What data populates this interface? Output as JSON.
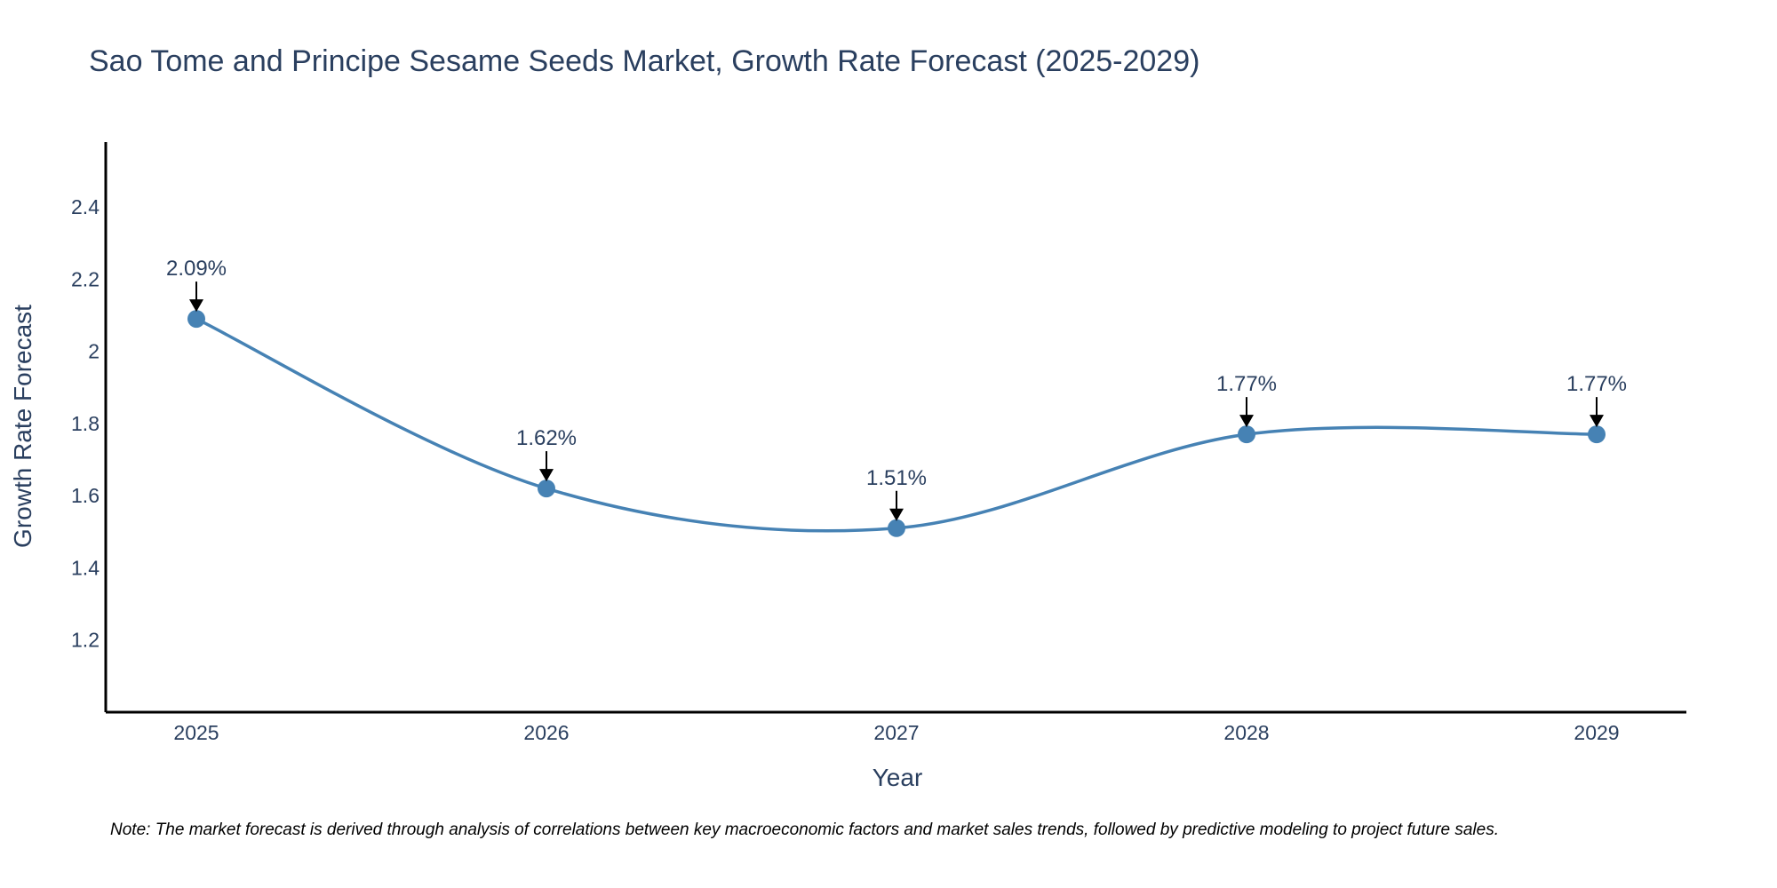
{
  "chart_data": {
    "type": "line",
    "title": "Sao Tome and Principe Sesame Seeds Market, Growth Rate Forecast (2025-2029)",
    "xlabel": "Year",
    "ylabel": "Growth Rate Forecast",
    "categories": [
      "2025",
      "2026",
      "2027",
      "2028",
      "2029"
    ],
    "series": [
      {
        "name": "Growth Rate Forecast",
        "values": [
          2.09,
          1.62,
          1.51,
          1.77,
          1.77
        ],
        "labels": [
          "2.09%",
          "1.62%",
          "1.51%",
          "1.77%",
          "1.77%"
        ],
        "color": "#4682b4"
      }
    ],
    "ylim": [
      1.0,
      2.58
    ],
    "yticks": [
      1.2,
      1.4,
      1.6,
      1.8,
      2,
      2.2,
      2.4
    ],
    "ytick_labels": [
      "1.2",
      "1.4",
      "1.6",
      "1.8",
      "2",
      "2.2",
      "2.4"
    ],
    "grid": false,
    "note": "Note: The market forecast is derived through analysis of correlations between key macroeconomic factors and market sales trends, followed by predictive modeling to project future sales."
  }
}
